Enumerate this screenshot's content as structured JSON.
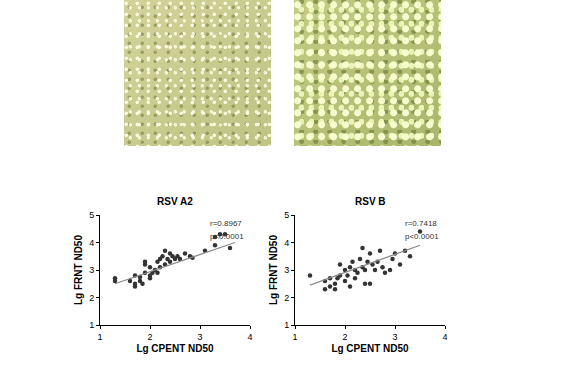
{
  "chart_data": [
    {
      "type": "scatter",
      "title": "RSV A2",
      "x_label": "Lg CPENT ND50",
      "y_label": "Lg FRNT ND50",
      "xlim": [
        1,
        4
      ],
      "ylim": [
        1,
        5
      ],
      "xticks": [
        1,
        2,
        3,
        4
      ],
      "yticks": [
        1,
        2,
        3,
        4,
        5
      ],
      "grid": false,
      "annotations": [
        "r=0.8967",
        "p<0.0001"
      ],
      "series": [
        {
          "type": "scatter",
          "marker": "circle",
          "color": "#333333",
          "x": [
            1.3,
            1.3,
            1.6,
            1.7,
            1.7,
            1.8,
            1.8,
            1.85,
            1.9,
            1.9,
            1.9,
            2.0,
            2.0,
            2.05,
            2.1,
            2.15,
            2.2,
            2.2,
            2.25,
            2.3,
            2.3,
            2.35,
            2.4,
            2.4,
            2.45,
            2.5,
            2.55,
            2.6,
            2.7,
            2.8,
            2.85,
            3.1,
            3.3,
            3.3,
            3.4,
            3.5,
            3.6,
            2.0,
            1.7,
            2.15
          ],
          "values": [
            2.6,
            2.7,
            2.6,
            2.5,
            2.8,
            2.6,
            2.75,
            2.5,
            2.9,
            3.2,
            3.3,
            2.8,
            2.7,
            2.9,
            3.0,
            3.3,
            3.4,
            3.1,
            3.5,
            3.7,
            3.2,
            3.4,
            3.6,
            3.3,
            3.5,
            3.4,
            3.5,
            3.4,
            3.6,
            3.5,
            3.45,
            3.7,
            3.9,
            4.2,
            4.3,
            4.3,
            3.8,
            3.1,
            2.4,
            2.9
          ]
        },
        {
          "type": "line",
          "line_style": "solid",
          "color": "#8c8c8c",
          "x": [
            1.3,
            3.7
          ],
          "values": [
            2.5,
            4.0
          ]
        }
      ]
    },
    {
      "type": "scatter",
      "title": "RSV B",
      "x_label": "Lg CPENT ND50",
      "y_label": "Lg FRNT ND50",
      "xlim": [
        1,
        4
      ],
      "ylim": [
        1,
        5
      ],
      "xticks": [
        1,
        2,
        3,
        4
      ],
      "yticks": [
        1,
        2,
        3,
        4,
        5
      ],
      "grid": false,
      "annotations": [
        "r=0.7418",
        "p<0.0001"
      ],
      "series": [
        {
          "type": "scatter",
          "marker": "circle",
          "color": "#333333",
          "x": [
            1.3,
            1.6,
            1.7,
            1.7,
            1.8,
            1.8,
            1.85,
            1.9,
            1.9,
            2.0,
            2.0,
            2.05,
            2.1,
            2.1,
            2.15,
            2.2,
            2.2,
            2.25,
            2.3,
            2.35,
            2.35,
            2.4,
            2.4,
            2.45,
            2.5,
            2.55,
            2.6,
            2.65,
            2.7,
            2.75,
            2.8,
            2.9,
            2.95,
            3.0,
            3.1,
            3.2,
            3.3,
            3.5,
            2.5,
            1.6
          ],
          "values": [
            2.8,
            2.6,
            2.4,
            2.7,
            2.3,
            2.5,
            2.7,
            2.8,
            3.2,
            2.6,
            3.0,
            2.8,
            2.4,
            3.1,
            3.3,
            2.7,
            3.0,
            2.9,
            3.4,
            3.1,
            3.8,
            3.0,
            2.5,
            3.3,
            2.5,
            3.2,
            3.0,
            3.3,
            3.7,
            3.1,
            2.9,
            3.0,
            3.4,
            3.6,
            3.2,
            3.7,
            3.5,
            4.4,
            3.6,
            2.3
          ]
        },
        {
          "type": "line",
          "line_style": "solid",
          "color": "#8c8c8c",
          "x": [
            1.3,
            3.5
          ],
          "values": [
            2.45,
            3.9
          ]
        }
      ]
    }
  ]
}
